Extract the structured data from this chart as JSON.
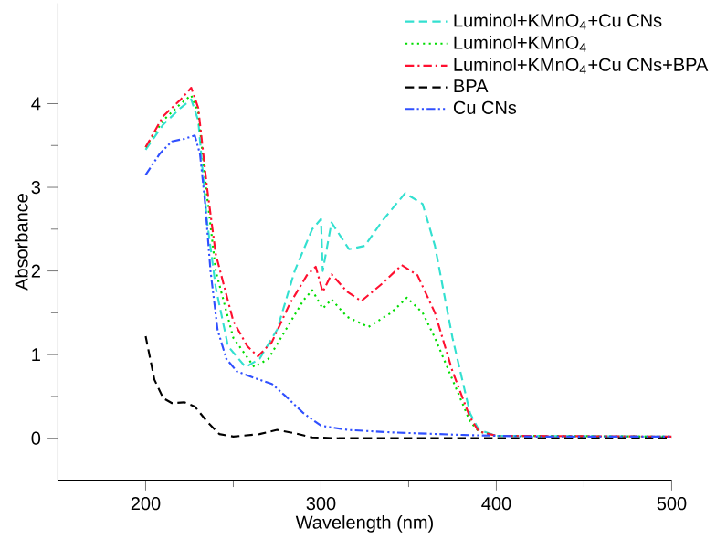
{
  "chart_data": {
    "type": "line",
    "xlabel": "Wavelength (nm)",
    "ylabel": "Absorbance",
    "xlim": [
      150,
      500
    ],
    "ylim": [
      -0.5,
      5.2
    ],
    "xticks": [
      200,
      300,
      400,
      500
    ],
    "yticks": [
      0,
      1,
      2,
      3,
      4
    ],
    "grid": false,
    "legend": "top right",
    "marker": "none",
    "series": [
      {
        "name": "Luminol+KMnO$_{4}$+Cu CNs",
        "color": "#33e0d0",
        "line_style": "dashed",
        "x": [
          200,
          210,
          220,
          226,
          230,
          235,
          240,
          247,
          257,
          265,
          275,
          285,
          295,
          300,
          301,
          306,
          316,
          325,
          335,
          348,
          358,
          365,
          375,
          385,
          390,
          400,
          500
        ],
        "values": [
          3.45,
          3.75,
          3.95,
          4.05,
          3.8,
          2.6,
          1.8,
          1.1,
          0.85,
          0.95,
          1.3,
          2.0,
          2.5,
          2.62,
          2.0,
          2.58,
          2.26,
          2.3,
          2.6,
          2.93,
          2.8,
          2.3,
          1.2,
          0.3,
          0.1,
          0.03,
          0.02
        ]
      },
      {
        "name": "Luminol+KMnO$_{4}$",
        "color": "#00dd00",
        "line_style": "dotted",
        "x": [
          200,
          210,
          220,
          226,
          230,
          235,
          240,
          250,
          262,
          270,
          280,
          290,
          295,
          301,
          306,
          315,
          327,
          340,
          349,
          358,
          365,
          375,
          385,
          390,
          400,
          500
        ],
        "values": [
          3.48,
          3.8,
          4.0,
          4.1,
          3.9,
          2.9,
          2.0,
          1.2,
          0.85,
          0.95,
          1.3,
          1.65,
          1.77,
          1.55,
          1.66,
          1.45,
          1.33,
          1.5,
          1.68,
          1.5,
          1.2,
          0.7,
          0.2,
          0.08,
          0.03,
          0.02
        ]
      },
      {
        "name": "Luminol+KMnO$_{4}$+Cu CNs+BPA",
        "color": "#ff1030",
        "line_style": "dashdot",
        "x": [
          200,
          210,
          220,
          226,
          230,
          235,
          240,
          250,
          258,
          264,
          272,
          282,
          292,
          297,
          301,
          306,
          315,
          323,
          335,
          346,
          355,
          365,
          375,
          385,
          390,
          400,
          500
        ],
        "values": [
          3.48,
          3.85,
          4.05,
          4.19,
          3.95,
          3.0,
          2.2,
          1.4,
          1.1,
          0.98,
          1.15,
          1.6,
          1.95,
          2.05,
          1.75,
          1.96,
          1.75,
          1.64,
          1.85,
          2.07,
          1.95,
          1.5,
          0.8,
          0.25,
          0.08,
          0.03,
          0.02
        ]
      },
      {
        "name": "BPA",
        "color": "#000000",
        "line_style": "dashed",
        "x": [
          200,
          205,
          210,
          215,
          222,
          228,
          235,
          242,
          250,
          265,
          275,
          285,
          295,
          310,
          500
        ],
        "values": [
          1.22,
          0.7,
          0.48,
          0.42,
          0.43,
          0.38,
          0.2,
          0.05,
          0.02,
          0.05,
          0.1,
          0.06,
          0.01,
          0.0,
          0.0
        ]
      },
      {
        "name": "Cu CNs",
        "color": "#3050ff",
        "line_style": "dashdotdot",
        "x": [
          200,
          208,
          215,
          222,
          228,
          231,
          234,
          237,
          241,
          246,
          252,
          262,
          272,
          280,
          290,
          300,
          315,
          340,
          380,
          420,
          500
        ],
        "values": [
          3.15,
          3.4,
          3.55,
          3.58,
          3.62,
          3.4,
          2.8,
          2.0,
          1.3,
          0.95,
          0.8,
          0.72,
          0.65,
          0.5,
          0.3,
          0.15,
          0.1,
          0.07,
          0.04,
          0.02,
          0.02
        ]
      }
    ]
  }
}
